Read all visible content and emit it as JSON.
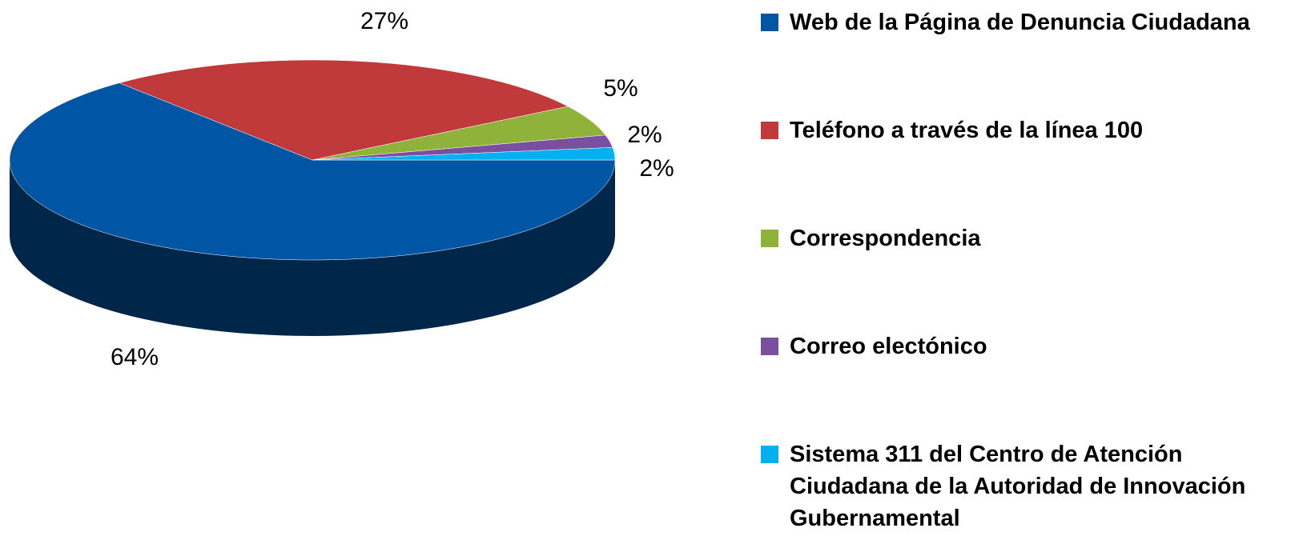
{
  "chart_data": {
    "type": "pie",
    "categories": [
      "Web de la Página de Denuncia Ciudadana",
      "Teléfono a través de la línea 100",
      "Correspondencia",
      "Correo electónico",
      "Sistema 311 del Centro de Atención Ciudadana de la Autoridad de Innovación Gubernamental"
    ],
    "values": [
      64,
      27,
      5,
      2,
      2
    ],
    "value_labels": [
      "64%",
      "27%",
      "5%",
      "2%",
      "2%"
    ],
    "colors": [
      "#0055a5",
      "#c0393b",
      "#8fb33a",
      "#7a4fa0",
      "#00b0f0"
    ],
    "legend": "right"
  }
}
